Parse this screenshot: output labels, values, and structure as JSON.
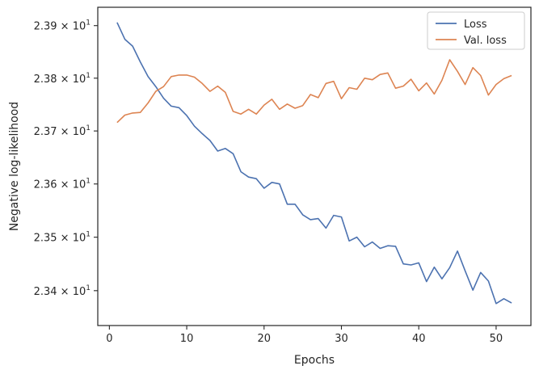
{
  "chart_data": {
    "type": "line",
    "xlabel": "Epochs",
    "ylabel": "Negative log-likelihood",
    "xlim": [
      -1.5,
      54.5
    ],
    "ylim": [
      23.335,
      23.935
    ],
    "yscale": "log",
    "x_ticks": [
      0,
      10,
      20,
      30,
      40,
      50
    ],
    "x_tick_labels": [
      "0",
      "10",
      "20",
      "30",
      "40",
      "50"
    ],
    "y_ticks": [
      23.4,
      23.5,
      23.6,
      23.7,
      23.8,
      23.9
    ],
    "y_tick_mantissas": [
      "2.34",
      "2.35",
      "2.36",
      "2.37",
      "2.38",
      "2.39"
    ],
    "y_tick_base": "10",
    "y_tick_exponent": "1",
    "legend_position": "top-right",
    "grid": false,
    "x": [
      1,
      2,
      3,
      4,
      5,
      6,
      7,
      8,
      9,
      10,
      11,
      12,
      13,
      14,
      15,
      16,
      17,
      18,
      19,
      20,
      21,
      22,
      23,
      24,
      25,
      26,
      27,
      28,
      29,
      30,
      31,
      32,
      33,
      34,
      35,
      36,
      37,
      38,
      39,
      40,
      41,
      42,
      43,
      44,
      45,
      46,
      47,
      48,
      49,
      50,
      51,
      52
    ],
    "series": [
      {
        "name": "Loss",
        "color": "#4c72b0",
        "values": [
          23.906,
          23.874,
          23.861,
          23.831,
          23.803,
          23.784,
          23.762,
          23.747,
          23.744,
          23.729,
          23.709,
          23.695,
          23.682,
          23.662,
          23.667,
          23.657,
          23.623,
          23.613,
          23.61,
          23.592,
          23.603,
          23.6,
          23.562,
          23.562,
          23.542,
          23.533,
          23.535,
          23.517,
          23.541,
          23.538,
          23.493,
          23.5,
          23.482,
          23.491,
          23.479,
          23.484,
          23.483,
          23.45,
          23.448,
          23.452,
          23.417,
          23.444,
          23.422,
          23.443,
          23.474,
          23.437,
          23.401,
          23.434,
          23.418,
          23.376,
          23.385,
          23.377
        ]
      },
      {
        "name": "Val. loss",
        "color": "#dd8452",
        "values": [
          23.716,
          23.73,
          23.734,
          23.735,
          23.753,
          23.775,
          23.784,
          23.803,
          23.806,
          23.806,
          23.802,
          23.79,
          23.775,
          23.785,
          23.773,
          23.737,
          23.732,
          23.741,
          23.732,
          23.749,
          23.76,
          23.741,
          23.751,
          23.743,
          23.748,
          23.769,
          23.763,
          23.79,
          23.794,
          23.761,
          23.782,
          23.779,
          23.8,
          23.797,
          23.807,
          23.81,
          23.781,
          23.785,
          23.798,
          23.776,
          23.791,
          23.77,
          23.796,
          23.835,
          23.813,
          23.788,
          23.82,
          23.805,
          23.768,
          23.788,
          23.799,
          23.805
        ]
      }
    ]
  }
}
